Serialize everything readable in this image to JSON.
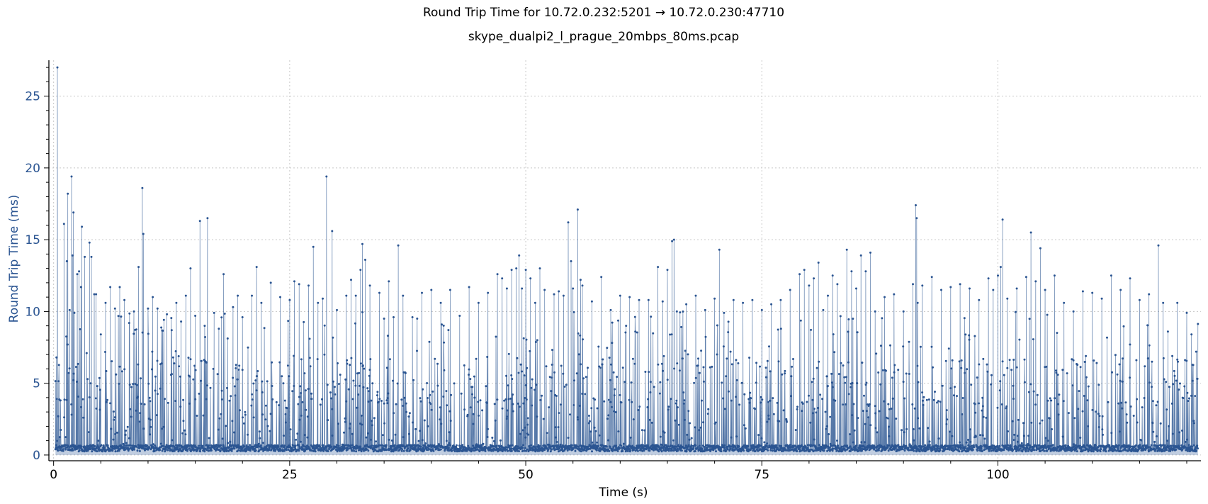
{
  "chart_data": {
    "type": "line",
    "title": "Round Trip Time for 10.72.0.232:5201 → 10.72.0.230:47710",
    "subtitle": "skype_dualpi2_l_prague_20mbps_80ms.pcap",
    "xlabel": "Time (s)",
    "ylabel": "Round Trip Time (ms)",
    "xlim": [
      -0.5,
      121.5
    ],
    "ylim": [
      -0.4,
      27.5
    ],
    "x_ticks": [
      0,
      25,
      50,
      75,
      100
    ],
    "y_ticks": [
      0,
      5,
      10,
      15,
      20,
      25
    ],
    "grid": true,
    "legend": "none",
    "colors": {
      "series": "#2b5592",
      "fill": "#4a6fa5",
      "y_axis_text": "#2b5592"
    },
    "series": [
      {
        "values_note": "dense RTT samples from ~0.2 s to ~121 s; baseline ~0.3–0.6 ms with frequent spikes up to ~27 ms",
        "points": [
          [
            0.2,
            0.4
          ],
          [
            0.3,
            6.8
          ],
          [
            0.35,
            3.9
          ],
          [
            0.4,
            27.0
          ],
          [
            0.5,
            2.7
          ],
          [
            0.6,
            0.5
          ],
          [
            1.0,
            0.4
          ],
          [
            1.1,
            16.1
          ],
          [
            1.4,
            13.5
          ],
          [
            1.5,
            18.2
          ],
          [
            1.7,
            10.1
          ],
          [
            1.9,
            19.4
          ],
          [
            2.0,
            13.9
          ],
          [
            2.1,
            16.9
          ],
          [
            2.2,
            9.9
          ],
          [
            2.5,
            12.6
          ],
          [
            2.7,
            12.8
          ],
          [
            2.9,
            11.7
          ],
          [
            3.0,
            15.9
          ],
          [
            3.3,
            13.8
          ],
          [
            3.5,
            7.1
          ],
          [
            3.8,
            14.8
          ],
          [
            4.0,
            13.8
          ],
          [
            4.3,
            11.2
          ],
          [
            4.5,
            11.2
          ],
          [
            5.0,
            8.4
          ],
          [
            5.5,
            10.6
          ],
          [
            6.0,
            11.7
          ],
          [
            6.5,
            10.2
          ],
          [
            7.0,
            11.7
          ],
          [
            7.5,
            10.8
          ],
          [
            8.0,
            9.2
          ],
          [
            8.5,
            10.0
          ],
          [
            9.0,
            13.1
          ],
          [
            9.4,
            18.6
          ],
          [
            9.5,
            15.4
          ],
          [
            10.0,
            10.2
          ],
          [
            10.5,
            11.0
          ],
          [
            11.0,
            10.2
          ],
          [
            12.0,
            9.8
          ],
          [
            12.5,
            8.7
          ],
          [
            13.0,
            10.6
          ],
          [
            13.5,
            9.3
          ],
          [
            14.0,
            11.1
          ],
          [
            14.5,
            13.0
          ],
          [
            15.0,
            9.7
          ],
          [
            15.5,
            16.3
          ],
          [
            16.0,
            9.0
          ],
          [
            16.3,
            16.5
          ],
          [
            17.0,
            9.9
          ],
          [
            17.5,
            8.8
          ],
          [
            18.0,
            12.6
          ],
          [
            19.0,
            10.3
          ],
          [
            19.5,
            11.1
          ],
          [
            20.0,
            9.6
          ],
          [
            21.0,
            11.1
          ],
          [
            21.5,
            13.1
          ],
          [
            22.0,
            10.6
          ],
          [
            23.0,
            12.0
          ],
          [
            24.0,
            11.0
          ],
          [
            25.0,
            10.8
          ],
          [
            25.5,
            12.1
          ],
          [
            26.0,
            11.9
          ],
          [
            27.0,
            11.8
          ],
          [
            27.5,
            14.5
          ],
          [
            28.0,
            10.6
          ],
          [
            28.5,
            10.9
          ],
          [
            28.9,
            19.4
          ],
          [
            29.5,
            15.6
          ],
          [
            30.0,
            10.1
          ],
          [
            31.0,
            11.1
          ],
          [
            31.5,
            12.2
          ],
          [
            32.0,
            11.1
          ],
          [
            32.5,
            12.9
          ],
          [
            32.7,
            14.7
          ],
          [
            33.0,
            13.6
          ],
          [
            33.5,
            11.8
          ],
          [
            34.5,
            11.3
          ],
          [
            35.0,
            9.5
          ],
          [
            35.5,
            12.1
          ],
          [
            36.0,
            9.6
          ],
          [
            36.5,
            14.6
          ],
          [
            37.0,
            11.1
          ],
          [
            38.0,
            9.6
          ],
          [
            38.5,
            9.5
          ],
          [
            39.0,
            11.3
          ],
          [
            40.0,
            11.5
          ],
          [
            41.0,
            10.6
          ],
          [
            42.0,
            11.5
          ],
          [
            43.0,
            9.7
          ],
          [
            44.0,
            11.7
          ],
          [
            45.0,
            10.6
          ],
          [
            46.0,
            11.3
          ],
          [
            47.0,
            12.6
          ],
          [
            47.5,
            12.3
          ],
          [
            48.0,
            11.6
          ],
          [
            48.5,
            12.9
          ],
          [
            49.0,
            13.0
          ],
          [
            49.3,
            13.9
          ],
          [
            49.6,
            11.6
          ],
          [
            50.0,
            12.9
          ],
          [
            50.5,
            12.3
          ],
          [
            51.0,
            10.6
          ],
          [
            51.5,
            13.0
          ],
          [
            52.0,
            11.5
          ],
          [
            53.0,
            11.2
          ],
          [
            53.5,
            11.4
          ],
          [
            54.0,
            11.1
          ],
          [
            54.5,
            16.2
          ],
          [
            54.8,
            13.5
          ],
          [
            55.0,
            11.6
          ],
          [
            55.5,
            17.1
          ],
          [
            55.8,
            12.2
          ],
          [
            56.0,
            11.8
          ],
          [
            57.0,
            10.7
          ],
          [
            58.0,
            12.4
          ],
          [
            59.0,
            10.1
          ],
          [
            60.0,
            11.1
          ],
          [
            61.0,
            11.0
          ],
          [
            62.0,
            10.8
          ],
          [
            63.0,
            10.8
          ],
          [
            64.0,
            13.1
          ],
          [
            64.5,
            10.7
          ],
          [
            65.0,
            12.9
          ],
          [
            65.5,
            14.9
          ],
          [
            65.7,
            15.0
          ],
          [
            66.0,
            10.0
          ],
          [
            67.0,
            10.5
          ],
          [
            68.0,
            11.1
          ],
          [
            69.0,
            10.1
          ],
          [
            70.0,
            10.9
          ],
          [
            70.5,
            14.3
          ],
          [
            71.0,
            9.9
          ],
          [
            72.0,
            10.8
          ],
          [
            73.0,
            10.6
          ],
          [
            74.0,
            10.8
          ],
          [
            75.0,
            10.1
          ],
          [
            76.0,
            10.5
          ],
          [
            77.0,
            10.8
          ],
          [
            78.0,
            11.5
          ],
          [
            79.0,
            12.6
          ],
          [
            79.5,
            12.9
          ],
          [
            80.0,
            11.8
          ],
          [
            80.5,
            12.3
          ],
          [
            81.0,
            13.4
          ],
          [
            81.5,
            10.1
          ],
          [
            82.0,
            11.1
          ],
          [
            82.5,
            12.5
          ],
          [
            83.0,
            11.9
          ],
          [
            84.0,
            14.3
          ],
          [
            84.5,
            12.8
          ],
          [
            85.0,
            11.6
          ],
          [
            85.5,
            13.9
          ],
          [
            86.0,
            12.8
          ],
          [
            86.5,
            14.1
          ],
          [
            87.0,
            10.0
          ],
          [
            88.0,
            11.0
          ],
          [
            89.0,
            11.2
          ],
          [
            90.0,
            10.0
          ],
          [
            91.0,
            11.9
          ],
          [
            91.3,
            17.4
          ],
          [
            91.4,
            16.5
          ],
          [
            91.5,
            10.6
          ],
          [
            92.0,
            11.8
          ],
          [
            93.0,
            12.4
          ],
          [
            94.0,
            11.5
          ],
          [
            95.0,
            11.7
          ],
          [
            96.0,
            11.9
          ],
          [
            97.0,
            11.6
          ],
          [
            98.0,
            10.8
          ],
          [
            99.0,
            12.3
          ],
          [
            99.5,
            11.5
          ],
          [
            100.0,
            12.5
          ],
          [
            100.3,
            13.1
          ],
          [
            100.5,
            16.4
          ],
          [
            101.0,
            10.9
          ],
          [
            102.0,
            11.6
          ],
          [
            103.0,
            12.4
          ],
          [
            103.5,
            15.5
          ],
          [
            104.0,
            12.1
          ],
          [
            104.5,
            14.4
          ],
          [
            105.0,
            11.5
          ],
          [
            106.0,
            12.5
          ],
          [
            107.0,
            10.6
          ],
          [
            108.0,
            10.0
          ],
          [
            109.0,
            11.4
          ],
          [
            110.0,
            11.3
          ],
          [
            111.0,
            10.9
          ],
          [
            112.0,
            12.5
          ],
          [
            113.0,
            11.5
          ],
          [
            114.0,
            12.3
          ],
          [
            115.0,
            10.8
          ],
          [
            116.0,
            11.2
          ],
          [
            117.0,
            14.6
          ],
          [
            117.5,
            10.6
          ],
          [
            118.0,
            8.6
          ],
          [
            119.0,
            10.6
          ],
          [
            120.0,
            9.9
          ],
          [
            120.5,
            8.4
          ],
          [
            121.0,
            7.2
          ]
        ]
      }
    ]
  }
}
